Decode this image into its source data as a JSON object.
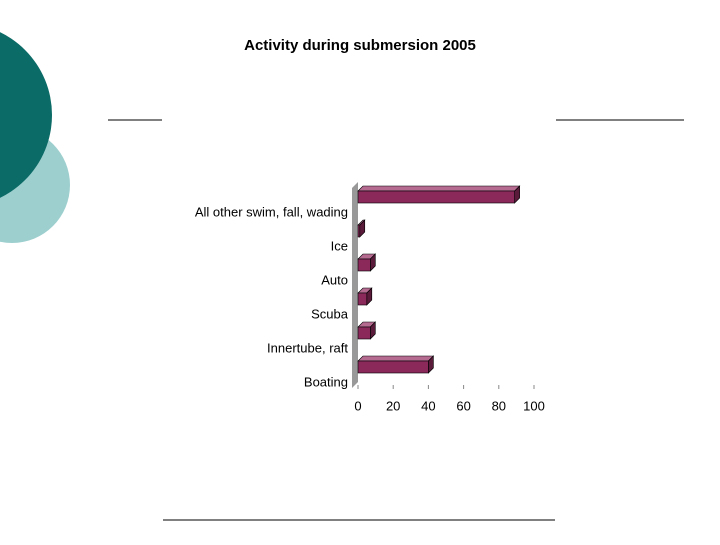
{
  "chart_data": {
    "type": "bar",
    "orientation": "horizontal",
    "title": "Activity during submersion 2005",
    "categories": [
      "All other swim, fall, wading",
      "Ice",
      "Auto",
      "Scuba",
      "Innertube, raft",
      "Boating"
    ],
    "values": [
      89,
      1,
      7,
      5,
      7,
      40
    ],
    "color": "#8b2a5a",
    "xlim": [
      0,
      100
    ],
    "xticks": [
      0,
      20,
      40,
      60,
      80,
      100
    ],
    "grid": false
  }
}
